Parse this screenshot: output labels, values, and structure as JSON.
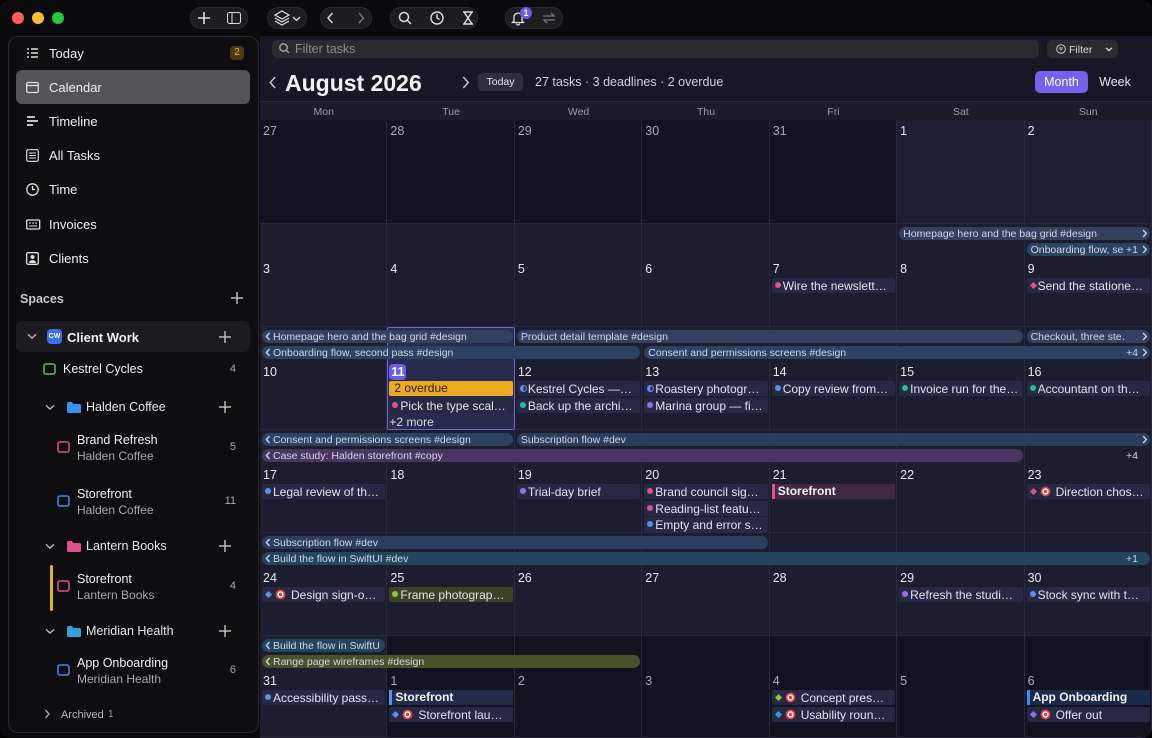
{
  "toolbar": {
    "notification_count": "1"
  },
  "sidebar": {
    "nav": [
      {
        "label": "Today",
        "badge": "2"
      },
      {
        "label": "Calendar",
        "selected": true
      },
      {
        "label": "Timeline"
      },
      {
        "label": "All Tasks"
      },
      {
        "label": "Time"
      },
      {
        "label": "Invoices"
      },
      {
        "label": "Clients"
      }
    ],
    "spaces_title": "Spaces",
    "space": {
      "label": "Client Work",
      "icon": "CW"
    },
    "tree": [
      {
        "kind": "project",
        "title": "Kestrel Cycles",
        "count": "4",
        "color": "#4cc36a"
      },
      {
        "kind": "folder",
        "title": "Halden Coffee",
        "color": "#3d8ef0"
      },
      {
        "kind": "project",
        "title": "Brand Refresh",
        "subtitle": "Halden Coffee",
        "count": "5",
        "color": "#e0507a"
      },
      {
        "kind": "project",
        "title": "Storefront",
        "subtitle": "Halden Coffee",
        "count": "11",
        "color": "#3d8ef0"
      },
      {
        "kind": "folder",
        "title": "Lantern Books",
        "color": "#e0508c"
      },
      {
        "kind": "project",
        "title": "Storefront",
        "subtitle": "Lantern Books",
        "count": "4",
        "color": "#e0508c",
        "accent": "#e8b21c"
      },
      {
        "kind": "folder",
        "title": "Meridian Health",
        "color": "#2fa0d8"
      },
      {
        "kind": "project",
        "title": "App Onboarding",
        "subtitle": "Meridian Health",
        "count": "6",
        "color": "#3d8ef0"
      }
    ],
    "archived": {
      "label": "Archived",
      "count": "1"
    }
  },
  "main": {
    "search_placeholder": "Filter tasks",
    "filter": "Filter",
    "month": "August 2026",
    "today": "Today",
    "summary": "27 tasks · 3 deadlines · 2 overdue",
    "views": [
      "Month",
      "Week"
    ],
    "weekdays": [
      "Mon",
      "Tue",
      "Wed",
      "Thu",
      "Fri",
      "Sat",
      "Sun"
    ],
    "weeks": [
      {
        "days": [
          {
            "num": "27",
            "other": true
          },
          {
            "num": "28",
            "other": true
          },
          {
            "num": "29",
            "other": true
          },
          {
            "num": "30",
            "other": true
          },
          {
            "num": "31",
            "other": true
          },
          {
            "num": "1"
          },
          {
            "num": "2"
          }
        ],
        "bars": [],
        "more": []
      },
      {
        "days": [
          {
            "num": "3"
          },
          {
            "num": "4"
          },
          {
            "num": "5"
          },
          {
            "num": "6"
          },
          {
            "num": "7",
            "items": [
              {
                "text": "Wire the newslett…",
                "kind": "dot",
                "color": "#e0508c"
              }
            ]
          },
          {
            "num": "8"
          },
          {
            "num": "9",
            "items": [
              {
                "text": "Send the statione…",
                "kind": "diamond",
                "color": "#e0508c"
              }
            ]
          }
        ],
        "bars": [
          {
            "text": "Homepage hero and the bag grid #design",
            "row": 0,
            "start": 5,
            "span": 2,
            "color": "#34405f",
            "next": true
          },
          {
            "text": "Onboarding flow, second pass #design",
            "row": 1,
            "start": 6,
            "span": 1,
            "color": "#2b4262",
            "next": true
          }
        ],
        "more": [
          {
            "row": 1,
            "label": "+1"
          }
        ]
      },
      {
        "days": [
          {
            "num": "10"
          },
          {
            "num": "11",
            "today": true,
            "items": [
              {
                "text": "2 overdue",
                "kind": "overdue",
                "color": "#f0a81e"
              },
              {
                "text": "Pick the type scal…",
                "kind": "dot",
                "color": "#e0508c"
              },
              {
                "text": "+2 more",
                "kind": "more"
              }
            ]
          },
          {
            "num": "12",
            "items": [
              {
                "text": "Kestrel Cycles —…",
                "kind": "half",
                "color": "#6a8cf0"
              },
              {
                "text": "Back up the archi…",
                "kind": "dot",
                "color": "#2fb89a"
              }
            ]
          },
          {
            "num": "13",
            "items": [
              {
                "text": "Roastery photogr…",
                "kind": "half",
                "color": "#6a8cf0"
              },
              {
                "text": "Marina group — fi…",
                "kind": "dot",
                "color": "#9a70e8"
              }
            ]
          },
          {
            "num": "14",
            "items": [
              {
                "text": "Copy review from…",
                "kind": "dot",
                "color": "#5a90f0"
              }
            ]
          },
          {
            "num": "15",
            "items": [
              {
                "text": "Invoice run for the…",
                "kind": "dot",
                "color": "#2fb89a"
              }
            ]
          },
          {
            "num": "16",
            "items": [
              {
                "text": "Accountant on th…",
                "kind": "dot",
                "color": "#2fb89a"
              }
            ]
          }
        ],
        "bars": [
          {
            "text": "Homepage hero and the bag grid #design",
            "row": 0,
            "start": 0,
            "span": 2,
            "color": "#34405f",
            "prev": true
          },
          {
            "text": "Product detail template #design",
            "row": 0,
            "start": 2,
            "span": 4,
            "color": "#34405f"
          },
          {
            "text": "Checkout, three ste…",
            "row": 0,
            "start": 6,
            "span": 1,
            "color": "#34405f",
            "next": true
          },
          {
            "text": "Onboarding flow, second pass #design",
            "row": 1,
            "start": 0,
            "span": 3,
            "color": "#2b4262",
            "prev": true
          },
          {
            "text": "Consent and permissions screens #design",
            "row": 1,
            "start": 3,
            "span": 4,
            "color": "#2b4262",
            "next": true
          }
        ],
        "more": [
          {
            "row": 1,
            "label": "+4"
          }
        ]
      },
      {
        "days": [
          {
            "num": "17",
            "items": [
              {
                "text": "Legal review of th…",
                "kind": "dot",
                "color": "#5a90f0"
              }
            ]
          },
          {
            "num": "18"
          },
          {
            "num": "19",
            "items": [
              {
                "text": "Trial-day brief",
                "kind": "dot",
                "color": "#9a70e8"
              }
            ]
          },
          {
            "num": "20",
            "items": [
              {
                "text": "Brand council sig…",
                "kind": "dot",
                "color": "#e0508c"
              },
              {
                "text": "Reading-list featu…",
                "kind": "dot",
                "color": "#e0508c"
              },
              {
                "text": "Empty and error s…",
                "kind": "dot",
                "color": "#5a90f0"
              }
            ]
          },
          {
            "num": "21",
            "items": [
              {
                "text": "Storefront",
                "kind": "deadline",
                "color": "#e0508c"
              }
            ]
          },
          {
            "num": "22"
          },
          {
            "num": "23",
            "items": [
              {
                "text": "Direction chos…",
                "kind": "diamond",
                "color": "#e0508c",
                "goal": true
              }
            ]
          }
        ],
        "bars": [
          {
            "text": "Consent and permissions screens #design",
            "row": 0,
            "start": 0,
            "span": 2,
            "color": "#2b4262",
            "prev": true
          },
          {
            "text": "Subscription flow #dev",
            "row": 0,
            "start": 2,
            "span": 5,
            "color": "#2b3d5e",
            "next": true
          },
          {
            "text": "Case study: Halden storefront #copy",
            "row": 1,
            "start": 0,
            "span": 6,
            "color": "#4a3562",
            "prev": true
          }
        ],
        "more": [
          {
            "row": 1,
            "label": "+4"
          }
        ]
      },
      {
        "days": [
          {
            "num": "24",
            "items": [
              {
                "text": "Design sign-o…",
                "kind": "diamond",
                "color": "#5a90f0",
                "goal": true
              }
            ]
          },
          {
            "num": "25",
            "items": [
              {
                "text": "Frame photograp…",
                "kind": "dot",
                "color": "#8cc840",
                "tint": "#3a4326"
              }
            ]
          },
          {
            "num": "26"
          },
          {
            "num": "27"
          },
          {
            "num": "28"
          },
          {
            "num": "29",
            "items": [
              {
                "text": "Refresh the studi…",
                "kind": "dot",
                "color": "#9a70e8"
              }
            ]
          },
          {
            "num": "30",
            "items": [
              {
                "text": "Stock sync with t…",
                "kind": "dot",
                "color": "#5a90f0"
              }
            ]
          }
        ],
        "bars": [
          {
            "text": "Subscription flow #dev",
            "row": 0,
            "start": 0,
            "span": 4,
            "color": "#2b3d5e",
            "prev": true
          },
          {
            "text": "Build the flow in SwiftUI #dev",
            "row": 1,
            "start": 0,
            "span": 7,
            "color": "#25455e",
            "prev": true
          }
        ],
        "more": [
          {
            "row": 1,
            "label": "+1"
          }
        ]
      },
      {
        "days": [
          {
            "num": "31",
            "items": [
              {
                "text": "Accessibility pass…",
                "kind": "dot",
                "color": "#5a90f0"
              }
            ]
          },
          {
            "num": "1",
            "other": true,
            "items": [
              {
                "text": "Storefront",
                "kind": "deadline",
                "color": "#5a90f0"
              },
              {
                "text": "Storefront lau…",
                "kind": "diamond",
                "color": "#5a90f0",
                "goal": true
              }
            ]
          },
          {
            "num": "2",
            "other": true
          },
          {
            "num": "3",
            "other": true
          },
          {
            "num": "4",
            "other": true,
            "items": [
              {
                "text": "Concept pres…",
                "kind": "diamond",
                "color": "#8cc840",
                "goal": true
              },
              {
                "text": "Usability roun…",
                "kind": "diamond",
                "color": "#2fa0d8",
                "goal": true
              }
            ]
          },
          {
            "num": "5",
            "other": true
          },
          {
            "num": "6",
            "other": true,
            "items": [
              {
                "text": "App Onboarding",
                "kind": "deadline",
                "color": "#3d8ef0"
              },
              {
                "text": "Offer out",
                "kind": "diamond",
                "color": "#9a70e8",
                "goal": true
              }
            ]
          }
        ],
        "bars": [
          {
            "text": "Build the flow in SwiftUI #dev",
            "row": 0,
            "start": 0,
            "span": 1,
            "color": "#25455e",
            "prev": true
          },
          {
            "text": "Range page wireframes #design",
            "row": 1,
            "start": 0,
            "span": 3,
            "color": "#46532a",
            "prev": true
          }
        ],
        "more": []
      }
    ]
  }
}
